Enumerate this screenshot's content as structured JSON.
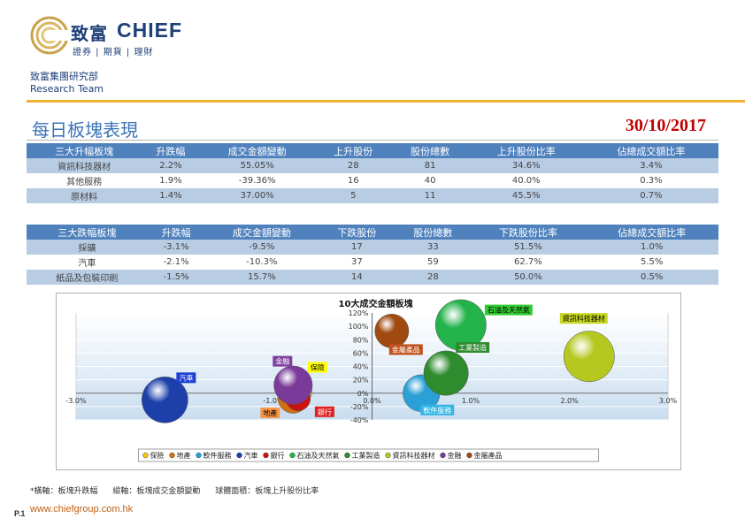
{
  "header": {
    "logo_cn": "致富",
    "logo_en": "CHIEF",
    "logo_sub": "證券 | 期貨 | 理財",
    "dept_cn": "致富集團研究部",
    "dept_en": "Research Team"
  },
  "title": "每日板塊表現",
  "date": "30/10/2017",
  "table_up": {
    "headers": [
      "三大升幅板塊",
      "升跌幅",
      "成交金額變動",
      "上升股份",
      "股份總數",
      "上升股份比率",
      "佔總成交額比率"
    ],
    "rows": [
      [
        "資訊科技器材",
        "2.2%",
        "55.05%",
        "28",
        "81",
        "34.6%",
        "3.4%"
      ],
      [
        "其他服務",
        "1.9%",
        "-39.36%",
        "16",
        "40",
        "40.0%",
        "0.3%"
      ],
      [
        "原材料",
        "1.4%",
        "37.00%",
        "5",
        "11",
        "45.5%",
        "0.7%"
      ]
    ]
  },
  "table_down": {
    "headers": [
      "三大跌幅板塊",
      "升跌幅",
      "成交金額變動",
      "下跌股份",
      "股份總數",
      "下跌股份比率",
      "佔總成交額比率"
    ],
    "rows": [
      [
        "採礦",
        "-3.1%",
        "-9.5%",
        "17",
        "33",
        "51.5%",
        "1.0%"
      ],
      [
        "汽車",
        "-2.1%",
        "-10.3%",
        "37",
        "59",
        "62.7%",
        "5.5%"
      ],
      [
        "紙品及包裝印刷",
        "-1.5%",
        "15.7%",
        "14",
        "28",
        "50.0%",
        "0.5%"
      ]
    ]
  },
  "chart_data": {
    "type": "scatter",
    "title": "10大成交金額板塊",
    "xlim": [
      -3.0,
      3.0
    ],
    "ylim": [
      -40,
      120
    ],
    "x_ticks": [
      "-3.0%",
      "-2.0%",
      "-1.0%",
      "0.0%",
      "1.0%",
      "2.0%",
      "3.0%"
    ],
    "y_ticks": [
      "-40%",
      "-20%",
      "0%",
      "20%",
      "40%",
      "60%",
      "80%",
      "100%",
      "120%"
    ],
    "legend_position": "bottom",
    "series": [
      {
        "name": "保險",
        "x": -0.75,
        "y": 3,
        "size": 36,
        "color": "#f2c811",
        "label_color": "#ffff00",
        "label_text_color": "#000000"
      },
      {
        "name": "地產",
        "x": -0.8,
        "y": -7,
        "size": 40,
        "color": "#d07010",
        "label_color": "#f79646",
        "label_text_color": "#000000"
      },
      {
        "name": "軟件服務",
        "x": 0.5,
        "y": 0,
        "size": 48,
        "color": "#2aa0d6",
        "label_color": "#33b5e5",
        "label_text_color": "#ffffff"
      },
      {
        "name": "汽車",
        "x": -2.1,
        "y": -10,
        "size": 60,
        "color": "#1c3faa",
        "label_color": "#1f3fd0",
        "label_text_color": "#ffffff"
      },
      {
        "name": "銀行",
        "x": -0.75,
        "y": -8,
        "size": 32,
        "color": "#cc1111",
        "label_color": "#e02020",
        "label_text_color": "#ffffff"
      },
      {
        "name": "石油及天然氣",
        "x": 0.9,
        "y": 102,
        "size": 66,
        "color": "#24b24a",
        "label_color": "#33cc33",
        "label_text_color": "#000000"
      },
      {
        "name": "工業製造",
        "x": 0.75,
        "y": 30,
        "size": 58,
        "color": "#2e8b2e",
        "label_color": "#2e8b2e",
        "label_text_color": "#ffffff"
      },
      {
        "name": "資訊科技器材",
        "x": 2.2,
        "y": 55,
        "size": 66,
        "color": "#b5c820",
        "label_color": "#c8d820",
        "label_text_color": "#000000"
      },
      {
        "name": "金融",
        "x": -0.8,
        "y": 12,
        "size": 50,
        "color": "#7a3a9a",
        "label_color": "#8040a0",
        "label_text_color": "#ffffff"
      },
      {
        "name": "金屬產品",
        "x": 0.2,
        "y": 93,
        "size": 44,
        "color": "#a04a10",
        "label_color": "#c0501a",
        "label_text_color": "#ffffff"
      }
    ]
  },
  "footer": {
    "note_x": "*橫軸：板塊升跌幅",
    "note_y": "縱軸：板塊成交金額變動",
    "note_size": "球體面積：板塊上升股份比率",
    "page": "P.1",
    "website": "www.chiefgroup.com.hk"
  }
}
